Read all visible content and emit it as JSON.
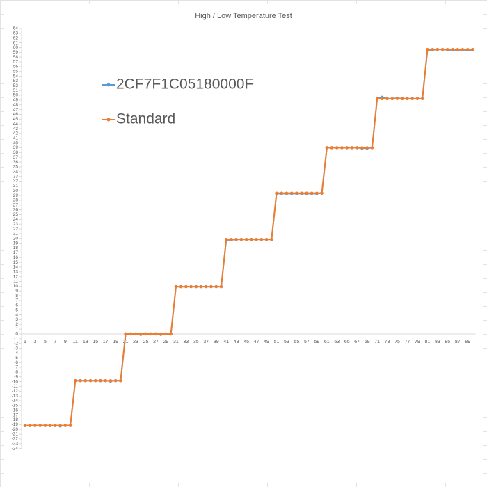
{
  "chart_data": {
    "type": "line",
    "title": "High / Low Temperature Test",
    "categories": [
      1,
      null,
      3,
      null,
      5,
      null,
      7,
      null,
      9,
      null,
      11,
      null,
      13,
      null,
      15,
      null,
      17,
      null,
      19,
      null,
      21,
      null,
      23,
      null,
      25,
      null,
      27,
      null,
      29,
      null,
      31,
      null,
      33,
      null,
      35,
      null,
      37,
      null,
      39,
      null,
      41,
      null,
      43,
      null,
      45,
      null,
      47,
      null,
      49,
      null,
      51,
      null,
      53,
      null,
      55,
      null,
      57,
      null,
      59,
      null,
      61,
      null,
      63,
      null,
      65,
      null,
      67,
      null,
      69,
      null,
      71,
      null,
      73,
      null,
      75,
      null,
      77,
      null,
      79,
      null,
      81,
      null,
      83,
      null,
      85,
      null,
      87,
      null,
      89,
      null
    ],
    "series": [
      {
        "name": "2CF7F1C05180000F",
        "color": "#5b9bd5",
        "values": [
          -19.2,
          -19.2,
          -19.2,
          -19.2,
          -19.2,
          -19.2,
          -19.2,
          -19.3,
          -19.2,
          -19.2,
          -9.8,
          -9.8,
          -9.8,
          -9.8,
          -9.8,
          -9.8,
          -9.8,
          -9.9,
          -9.8,
          -9.8,
          0,
          0,
          0,
          -0.1,
          0,
          0,
          0,
          -0.1,
          0,
          0,
          9.9,
          9.9,
          9.9,
          9.9,
          9.9,
          9.9,
          9.9,
          9.9,
          9.9,
          9.9,
          19.7,
          19.7,
          19.8,
          19.8,
          19.8,
          19.8,
          19.8,
          19.8,
          19.8,
          19.8,
          29.4,
          29.4,
          29.4,
          29.4,
          29.4,
          29.4,
          29.4,
          29.4,
          29.4,
          29.5,
          39,
          39,
          39,
          39,
          39,
          39,
          39,
          38.9,
          38.9,
          39,
          49.3,
          49.6,
          49.3,
          49.3,
          49.4,
          49.3,
          49.3,
          49.3,
          49.3,
          49.3,
          59.5,
          59.5,
          59.6,
          59.6,
          59.5,
          59.5,
          59.5,
          59.5,
          59.5,
          59.5
        ]
      },
      {
        "name": "Standard",
        "color": "#ed7d31",
        "values": [
          -19.2,
          -19.2,
          -19.2,
          -19.2,
          -19.2,
          -19.2,
          -19.2,
          -19.2,
          -19.2,
          -19.2,
          -9.8,
          -9.8,
          -9.8,
          -9.8,
          -9.8,
          -9.8,
          -9.8,
          -9.8,
          -9.8,
          -9.8,
          0,
          0,
          0,
          0,
          0,
          0,
          0,
          0,
          0,
          0,
          9.9,
          9.9,
          9.9,
          9.9,
          9.9,
          9.9,
          9.9,
          9.9,
          9.9,
          9.9,
          19.8,
          19.8,
          19.8,
          19.8,
          19.8,
          19.8,
          19.8,
          19.8,
          19.8,
          19.8,
          29.5,
          29.5,
          29.5,
          29.5,
          29.5,
          29.5,
          29.5,
          29.5,
          29.5,
          29.5,
          39,
          39,
          39,
          39,
          39,
          39,
          39,
          39,
          39,
          39,
          49.3,
          49.3,
          49.3,
          49.3,
          49.3,
          49.3,
          49.3,
          49.3,
          49.3,
          49.3,
          59.6,
          59.6,
          59.6,
          59.6,
          59.6,
          59.6,
          59.6,
          59.6,
          59.6,
          59.6
        ]
      }
    ],
    "ylim": [
      -24,
      64
    ],
    "yticks": [
      -24,
      -23,
      -22,
      -21,
      -20,
      -19,
      -18,
      -17,
      -16,
      -15,
      -14,
      -13,
      -12,
      -11,
      -10,
      -9,
      -8,
      -7,
      -6,
      -5,
      -4,
      -3,
      -2,
      -1,
      0,
      1,
      2,
      3,
      4,
      5,
      6,
      7,
      8,
      9,
      10,
      11,
      12,
      13,
      14,
      15,
      16,
      17,
      18,
      19,
      20,
      21,
      22,
      23,
      24,
      25,
      26,
      27,
      28,
      29,
      30,
      31,
      32,
      33,
      34,
      35,
      36,
      37,
      38,
      39,
      40,
      41,
      42,
      43,
      44,
      45,
      46,
      47,
      48,
      49,
      50,
      51,
      52,
      53,
      54,
      55,
      56,
      57,
      58,
      59,
      60,
      61,
      62,
      63,
      64
    ],
    "grid": false
  }
}
